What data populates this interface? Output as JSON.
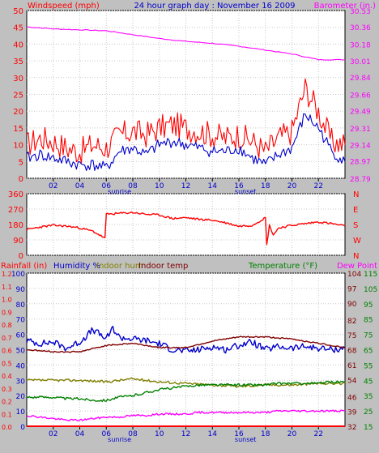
{
  "page": {
    "background": "#c0c0c0"
  },
  "colors": {
    "windspeed": "#ff0000",
    "gust": "#ff0000",
    "avgwind": "#0000cc",
    "barometer": "#ff00ff",
    "direction": "#ff0000",
    "rainfall": "#ff0000",
    "humidity": "#0000cc",
    "indoor_hum": "#808000",
    "indoor_temp": "#800000",
    "temperature": "#008000",
    "dew_point": "#ff00ff",
    "axis": "#000000",
    "grid": "#c8c8c8"
  },
  "chart_data": [
    {
      "id": "wind-chart",
      "type": "line",
      "title": "24 hour graph day : November 16 2009",
      "left_label": "Windspeed (mph)",
      "right_label": "Barometer (in.)",
      "x_ticks": [
        "02",
        "04",
        "06",
        "08",
        "10",
        "12",
        "14",
        "16",
        "18",
        "20",
        "22"
      ],
      "x_annotations": [
        "sunrise",
        "sunset"
      ],
      "y_left": {
        "min": 0,
        "max": 50,
        "ticks": [
          0,
          5,
          10,
          15,
          20,
          25,
          30,
          35,
          40,
          45,
          50
        ]
      },
      "y_right": {
        "min": 28.79,
        "max": 30.53,
        "ticks": [
          "28.79",
          "28.97",
          "29.14",
          "29.31",
          "29.49",
          "29.66",
          "29.84",
          "30.01",
          "30.18",
          "30.36",
          "30.53"
        ]
      },
      "series": [
        {
          "key": "gust",
          "axis": "left",
          "x": [
            0,
            1,
            2,
            3,
            4,
            5,
            6,
            7,
            8,
            9,
            10,
            11,
            12,
            13,
            14,
            15,
            16,
            17,
            18,
            19,
            20,
            21,
            22,
            23,
            24
          ],
          "values": [
            10,
            12,
            11,
            9,
            8,
            10,
            9,
            13,
            14,
            13,
            15,
            16,
            15,
            14,
            13,
            12,
            13,
            11,
            8,
            12,
            14,
            27,
            20,
            11,
            10
          ]
        },
        {
          "key": "avgwind",
          "axis": "left",
          "x": [
            0,
            1,
            2,
            3,
            4,
            5,
            6,
            7,
            8,
            9,
            10,
            11,
            12,
            13,
            14,
            15,
            16,
            17,
            18,
            19,
            20,
            21,
            22,
            23,
            24
          ],
          "values": [
            6,
            7,
            6,
            5,
            4,
            4,
            3,
            8,
            9,
            7,
            10,
            11,
            10,
            9,
            8,
            8,
            9,
            6,
            4,
            7,
            9,
            19,
            15,
            8,
            5
          ]
        },
        {
          "key": "barometer",
          "axis": "right",
          "x": [
            0,
            2,
            4,
            6,
            8,
            10,
            12,
            14,
            16,
            18,
            20,
            22,
            24
          ],
          "values": [
            30.36,
            30.34,
            30.33,
            30.32,
            30.28,
            30.24,
            30.21,
            30.19,
            30.16,
            30.12,
            30.08,
            30.02,
            30.02
          ]
        }
      ]
    },
    {
      "id": "direction-chart",
      "type": "line",
      "y_left": {
        "min": 0,
        "max": 360,
        "ticks": [
          0,
          90,
          180,
          270,
          360
        ]
      },
      "y_right_labels": [
        "N",
        "W",
        "S",
        "E",
        "N"
      ],
      "series": [
        {
          "key": "direction",
          "axis": "left",
          "x": [
            0,
            1,
            2,
            3,
            4,
            5,
            5.9,
            6.0,
            7,
            8,
            9,
            10,
            11,
            12,
            13,
            14,
            15,
            16,
            17,
            18,
            18.1,
            18.3,
            18.6,
            19,
            20,
            21,
            22,
            23,
            24
          ],
          "values": [
            150,
            165,
            175,
            170,
            160,
            140,
            100,
            240,
            245,
            250,
            240,
            235,
            215,
            220,
            210,
            205,
            190,
            170,
            175,
            220,
            60,
            175,
            120,
            160,
            175,
            185,
            195,
            185,
            170
          ]
        }
      ]
    },
    {
      "id": "temp-chart",
      "type": "line",
      "headers": {
        "rainfall": "Rainfall (in)",
        "humidity": "Humidity %",
        "indoor_hum": "Indoor hum",
        "indoor_temp": "Indoor temp",
        "temperature": "Temperature (°F)",
        "dew_point": "Dew Point"
      },
      "x_ticks": [
        "02",
        "04",
        "06",
        "08",
        "10",
        "12",
        "14",
        "16",
        "18",
        "20",
        "22"
      ],
      "x_annotations": [
        "sunrise",
        "sunset"
      ],
      "y_rain": {
        "min": 0.0,
        "max": 1.2,
        "ticks": [
          "0.0",
          "0.1",
          "0.2",
          "0.3",
          "0.4",
          "0.5",
          "0.6",
          "0.7",
          "0.8",
          "0.9",
          "1.0",
          "1.1",
          "1.2"
        ]
      },
      "y_hum": {
        "min": 0,
        "max": 100,
        "ticks": [
          0,
          10,
          20,
          30,
          40,
          50,
          60,
          70,
          80,
          90,
          100
        ]
      },
      "y_indoor": {
        "min": 32,
        "max": 104,
        "ticks": [
          32,
          39,
          46,
          54,
          61,
          68,
          75,
          82,
          90,
          97,
          104
        ]
      },
      "y_temp": {
        "min": 15,
        "max": 115,
        "ticks": [
          15,
          25,
          35,
          45,
          55,
          65,
          75,
          85,
          95,
          105,
          115
        ]
      },
      "series": [
        {
          "key": "rainfall",
          "axis": "rain",
          "x": [
            0,
            24
          ],
          "values": [
            0.0,
            0.0
          ]
        },
        {
          "key": "humidity",
          "axis": "hum",
          "x": [
            0,
            1,
            2,
            3,
            4,
            5,
            6,
            6.5,
            7,
            8,
            9,
            10,
            11,
            12,
            13,
            14,
            15,
            16,
            17,
            18,
            19,
            20,
            21,
            22,
            23,
            24
          ],
          "values": [
            56,
            54,
            55,
            51,
            55,
            63,
            57,
            64,
            58,
            57,
            56,
            54,
            50,
            49,
            50,
            52,
            50,
            53,
            55,
            50,
            52,
            51,
            52,
            51,
            50,
            51
          ]
        },
        {
          "key": "indoor_hum",
          "axis": "hum",
          "x": [
            0,
            2,
            4,
            6,
            8,
            10,
            12,
            14,
            16,
            18,
            20,
            22,
            24
          ],
          "values": [
            30,
            30,
            30,
            29,
            31,
            29,
            28,
            27,
            26,
            27,
            27,
            28,
            28
          ]
        },
        {
          "key": "indoor_temp",
          "axis": "indoor",
          "x": [
            0,
            2,
            4,
            6,
            8,
            10,
            12,
            14,
            16,
            18,
            20,
            22,
            24
          ],
          "values": [
            68,
            67,
            67,
            70,
            71,
            69,
            69,
            72,
            74,
            74,
            73,
            71,
            69
          ]
        },
        {
          "key": "temperature",
          "axis": "temp",
          "x": [
            0,
            1,
            2,
            3,
            4,
            5,
            6,
            7,
            8,
            9,
            10,
            11,
            12,
            13,
            14,
            15,
            16,
            17,
            18,
            19,
            20,
            21,
            22,
            23,
            24
          ],
          "values": [
            34,
            34,
            34,
            33,
            33,
            32,
            32,
            34,
            35,
            37,
            39,
            40,
            41,
            42,
            42,
            42,
            42,
            42,
            42,
            43,
            43,
            43,
            43,
            44,
            44
          ]
        },
        {
          "key": "dew_point",
          "axis": "temp",
          "x": [
            0,
            1,
            2,
            3,
            4,
            5,
            6,
            7,
            8,
            9,
            10,
            11,
            12,
            13,
            14,
            15,
            16,
            17,
            18,
            19,
            20,
            21,
            22,
            23,
            24
          ],
          "values": [
            22,
            21,
            20,
            19,
            19,
            20,
            21,
            21,
            22,
            22,
            23,
            23,
            23,
            24,
            24,
            24,
            24,
            24,
            24,
            25,
            25,
            25,
            25,
            25,
            25
          ]
        }
      ]
    }
  ]
}
